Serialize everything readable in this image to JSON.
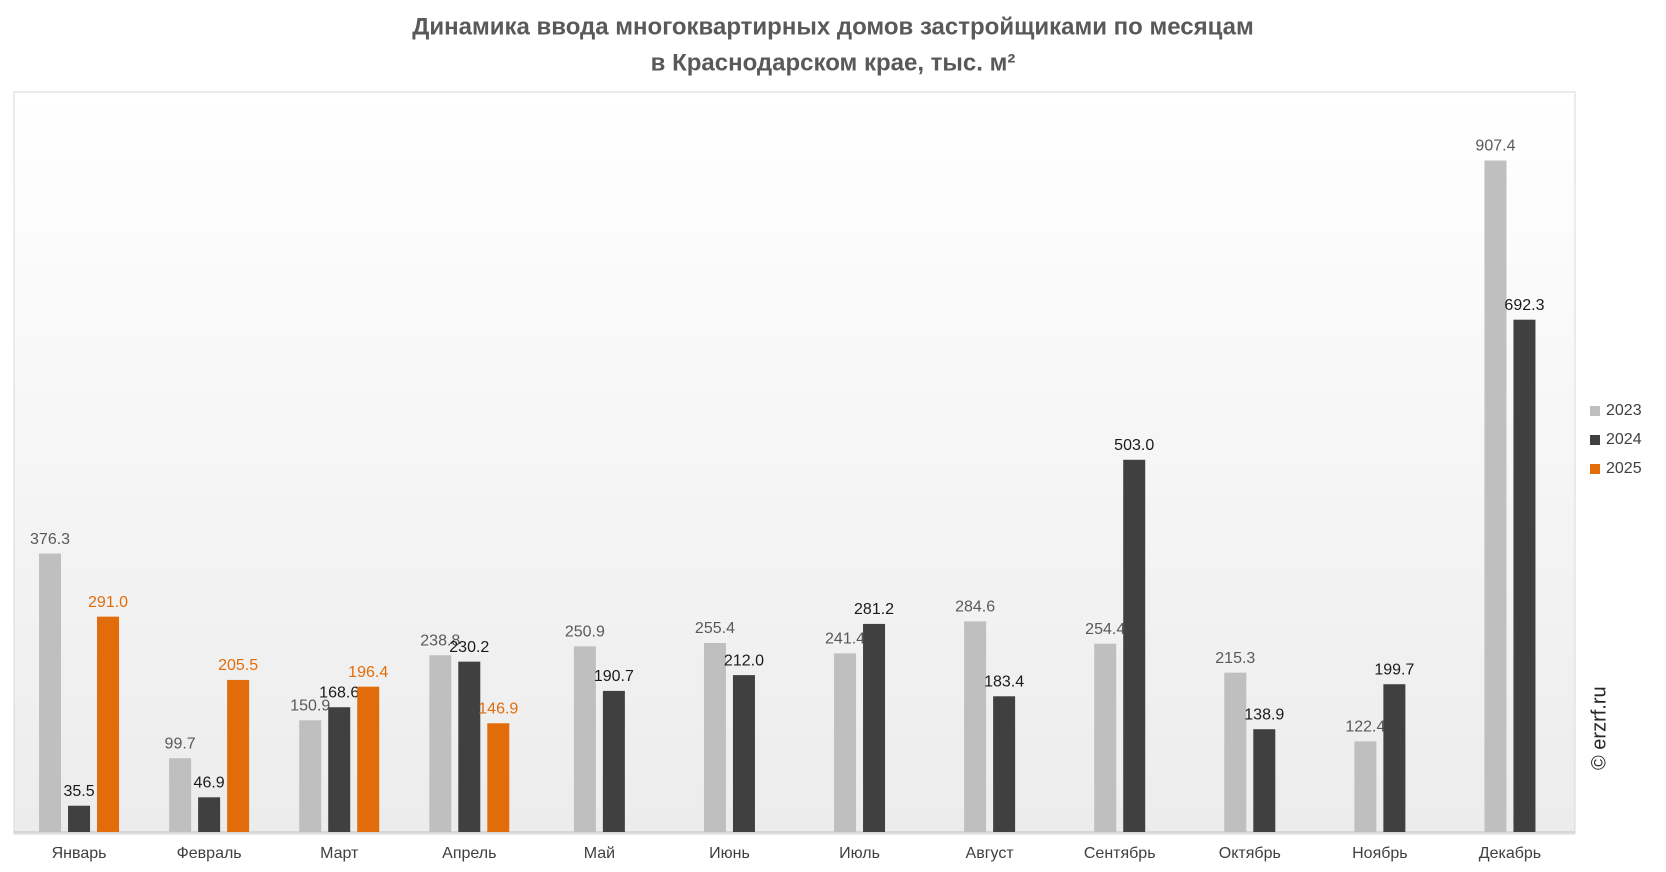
{
  "chart_data": {
    "type": "bar",
    "title": "Динамика ввода многоквартирных домов застройщиками по месяцам",
    "subtitle": "в Краснодарском крае, тыс. м²",
    "watermark": "© erzrf.ru",
    "categories": [
      "Январь",
      "Февраль",
      "Март",
      "Апрель",
      "Май",
      "Июнь",
      "Июль",
      "Август",
      "Сентябрь",
      "Октябрь",
      "Ноябрь",
      "Декабрь"
    ],
    "series": [
      {
        "name": "2023",
        "color": "#bfbfbf",
        "label_color": "#595959",
        "values": [
          376.3,
          99.7,
          150.9,
          238.8,
          250.9,
          255.4,
          241.4,
          284.6,
          254.4,
          215.3,
          122.4,
          907.4
        ],
        "value_labels": [
          "376.3",
          "99.7",
          "150.9",
          "238.8",
          "250.9",
          "255.4",
          "241.4",
          "284.6",
          "254.4",
          "215.3",
          "122.4",
          "907.4"
        ]
      },
      {
        "name": "2024",
        "color": "#404040",
        "label_color": "#1a1a1a",
        "values": [
          35.5,
          46.9,
          168.6,
          230.2,
          190.7,
          212.0,
          281.2,
          183.4,
          503.0,
          138.9,
          199.7,
          692.3
        ],
        "value_labels": [
          "35.5",
          "46.9",
          "168.6",
          "230.2",
          "190.7",
          "212.0",
          "281.2",
          "183.4",
          "503.0",
          "138.9",
          "199.7",
          "692.3"
        ]
      },
      {
        "name": "2025",
        "color": "#e36c0a",
        "label_color": "#e36c0a",
        "values": [
          291.0,
          205.5,
          196.4,
          146.9,
          null,
          null,
          null,
          null,
          null,
          null,
          null,
          null
        ],
        "value_labels": [
          "291.0",
          "205.5",
          "196.4",
          "146.9",
          null,
          null,
          null,
          null,
          null,
          null,
          null,
          null
        ]
      }
    ],
    "ylim": [
      0,
      1000
    ],
    "legend": "right"
  }
}
